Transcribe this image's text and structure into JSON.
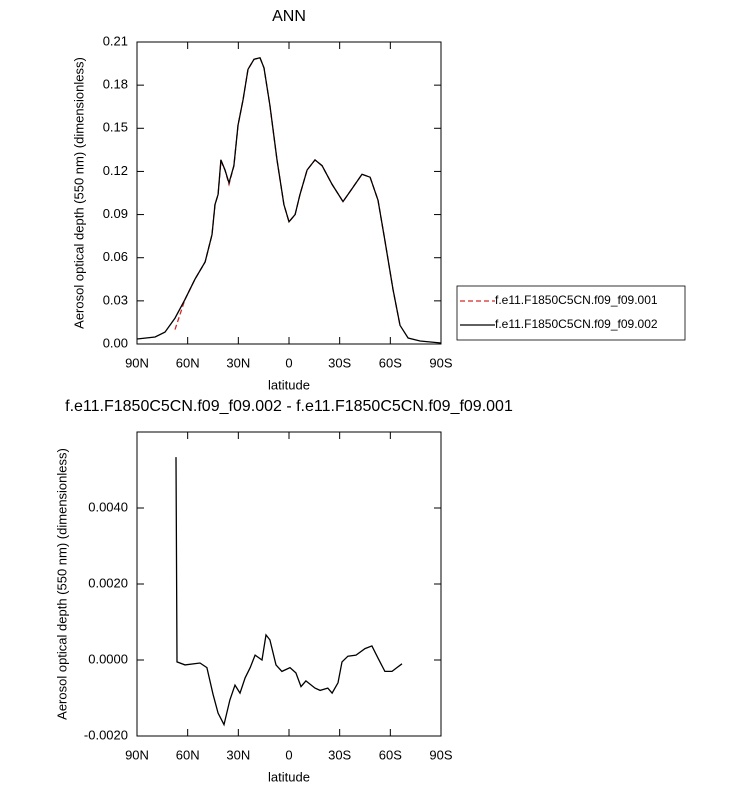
{
  "chart_data": [
    {
      "type": "line",
      "title": "ANN",
      "xlabel": "latitude",
      "ylabel": "Aerosol optical depth (550 nm) (dimensionless)",
      "xlim": [
        90,
        -90
      ],
      "xticks": [
        {
          "value": 90,
          "label": "90N"
        },
        {
          "value": 60,
          "label": "60N"
        },
        {
          "value": 30,
          "label": "30N"
        },
        0,
        {
          "value": -30,
          "label": "30S"
        },
        {
          "value": -60,
          "label": "60S"
        },
        {
          "value": -90,
          "label": "90S"
        }
      ],
      "ylim": [
        0,
        0.21
      ],
      "yticks": [
        {
          "value": 0,
          "label": "0.00"
        },
        0.03,
        0.06,
        0.09,
        0.12,
        0.15,
        0.18,
        0.21
      ],
      "legend": "right",
      "series": [
        {
          "name": "f.e11.F1850C5CN.f09_f09.001",
          "color": "#d62728",
          "dash": true,
          "x": [
            67.5,
            61.6,
            55.7,
            49.7,
            45.6,
            43.8,
            42.0,
            40.3,
            37.9,
            35.5,
            32.6,
            30.2,
            27.2,
            24.3,
            20.7,
            17.2,
            14.8,
            11.3,
            7.1,
            3.0,
            0,
            -3.6,
            -6.5,
            -10.7,
            -15.4,
            -19.6,
            -25.5,
            -32,
            -37.3,
            -43.2,
            -48,
            -52.7,
            -56.8,
            -61.6,
            -65.7
          ],
          "values": [
            0.01,
            0.031,
            0.045,
            0.057,
            0.076,
            0.097,
            0.104,
            0.127,
            0.121,
            0.111,
            0.124,
            0.152,
            0.17,
            0.191,
            0.198,
            0.199,
            0.192,
            0.166,
            0.128,
            0.097,
            0.085,
            0.09,
            0.104,
            0.121,
            0.128,
            0.124,
            0.111,
            0.099,
            0.108,
            0.118,
            0.116,
            0.1,
            0.072,
            0.038,
            0.013
          ]
        },
        {
          "name": "f.e11.F1850C5CN.f09_f09.002",
          "color": "#000000",
          "dash": false,
          "x": [
            90,
            79.3,
            73.4,
            67.5,
            61.6,
            55.7,
            49.7,
            45.6,
            43.8,
            42.0,
            40.3,
            37.9,
            35.5,
            32.6,
            30.2,
            27.2,
            24.3,
            20.7,
            17.2,
            14.8,
            11.3,
            7.1,
            3.0,
            0,
            -3.6,
            -6.5,
            -10.7,
            -15.4,
            -19.6,
            -25.5,
            -32,
            -37.3,
            -43.2,
            -48,
            -52.7,
            -56.8,
            -61.6,
            -65.7,
            -70.5,
            -77.6,
            -90
          ],
          "values": [
            0.0035,
            0.0049,
            0.0083,
            0.018,
            0.031,
            0.045,
            0.057,
            0.076,
            0.097,
            0.104,
            0.128,
            0.121,
            0.112,
            0.124,
            0.152,
            0.17,
            0.191,
            0.198,
            0.199,
            0.192,
            0.166,
            0.128,
            0.097,
            0.085,
            0.09,
            0.104,
            0.121,
            0.128,
            0.124,
            0.111,
            0.099,
            0.108,
            0.118,
            0.116,
            0.1,
            0.072,
            0.038,
            0.013,
            0.0042,
            0.0021,
            0.0007
          ]
        }
      ]
    },
    {
      "type": "line",
      "title": "f.e11.F1850C5CN.f09_f09.002 - f.e11.F1850C5CN.f09_f09.001",
      "xlabel": "latitude",
      "ylabel": "Aerosol optical depth (550 nm) (dimensionless)",
      "xlim": [
        90,
        -90
      ],
      "xticks": [
        {
          "value": 90,
          "label": "90N"
        },
        {
          "value": 60,
          "label": "60N"
        },
        {
          "value": 30,
          "label": "30N"
        },
        0,
        {
          "value": -30,
          "label": "30S"
        },
        {
          "value": -60,
          "label": "60S"
        },
        {
          "value": -90,
          "label": "90S"
        }
      ],
      "ylim": [
        -0.002,
        0.006
      ],
      "yticks": [
        {
          "value": -0.002,
          "label": "-0.0020"
        },
        {
          "value": 0,
          "label": "0.0000"
        },
        {
          "value": 0.002,
          "label": "0.0020"
        },
        {
          "value": 0.004,
          "label": "0.0040"
        }
      ],
      "series": [
        {
          "color": "#000000",
          "dash": false,
          "x": [
            66.9,
            66.3,
            61.6,
            52.7,
            48.6,
            45,
            42,
            38.5,
            35,
            32,
            29,
            26,
            23,
            20.1,
            16,
            13.6,
            11.3,
            7.7,
            4.2,
            -0.6,
            -4.1,
            -7.1,
            -10,
            -15.4,
            -18.4,
            -23,
            -25.5,
            -29,
            -31.4,
            -34.9,
            -39.7,
            -45,
            -49.1,
            -52.7,
            -56.8,
            -61,
            -63.9,
            -66.9
          ],
          "values": [
            0.00534,
            -5e-05,
            -0.00013,
            -8e-05,
            -0.0002,
            -0.0009,
            -0.0014,
            -0.0017,
            -0.00105,
            -0.00066,
            -0.00087,
            -0.00047,
            -0.0002,
            0.00013,
            0,
            0.00066,
            0.00053,
            -0.00013,
            -0.0003,
            -0.0002,
            -0.00034,
            -0.0007,
            -0.00055,
            -0.00074,
            -0.0008,
            -0.00074,
            -0.00087,
            -0.0006,
            -5e-05,
            0.0001,
            0.00013,
            0.0003,
            0.00037,
            5e-05,
            -0.0003,
            -0.0003,
            -0.0002,
            -0.0001
          ]
        }
      ]
    }
  ]
}
